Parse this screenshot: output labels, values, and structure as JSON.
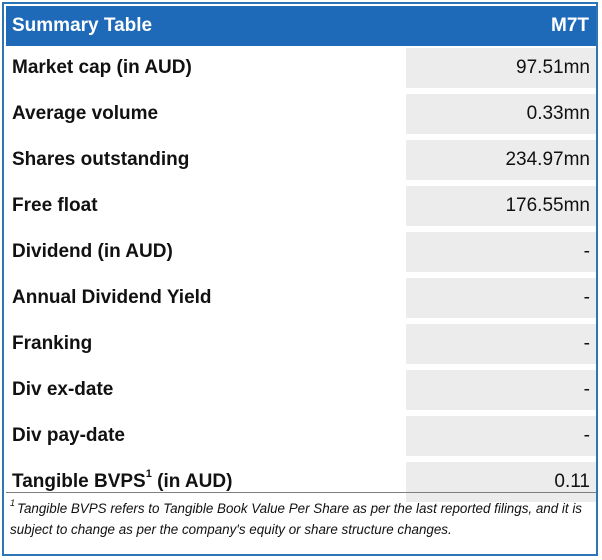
{
  "table": {
    "title": "Summary Table",
    "ticker": "M7T",
    "rows": [
      {
        "label": "Market cap (in AUD)",
        "value": "97.51mn"
      },
      {
        "label": "Average volume",
        "value": "0.33mn"
      },
      {
        "label": "Shares outstanding",
        "value": "234.97mn"
      },
      {
        "label": "Free float",
        "value": "176.55mn"
      },
      {
        "label": "Dividend (in AUD)",
        "value": "-"
      },
      {
        "label": "Annual Dividend Yield",
        "value": "-"
      },
      {
        "label": "Franking",
        "value": "-"
      },
      {
        "label": "Div ex-date",
        "value": "-"
      },
      {
        "label": "Div pay-date",
        "value": "-"
      },
      {
        "label_main": "Tangible BVPS",
        "label_sup": "1",
        "label_suffix": " (in AUD)",
        "value": "0.11"
      }
    ]
  },
  "footnote": {
    "marker": "1",
    "text": "Tangible BVPS refers to Tangible Book Value Per Share as per the last reported filings, and it is subject to change as per the company's equity or share structure changes."
  },
  "colors": {
    "header_bg": "#1f6ab8",
    "border": "#2e75b6",
    "value_bg": "#ececec"
  }
}
